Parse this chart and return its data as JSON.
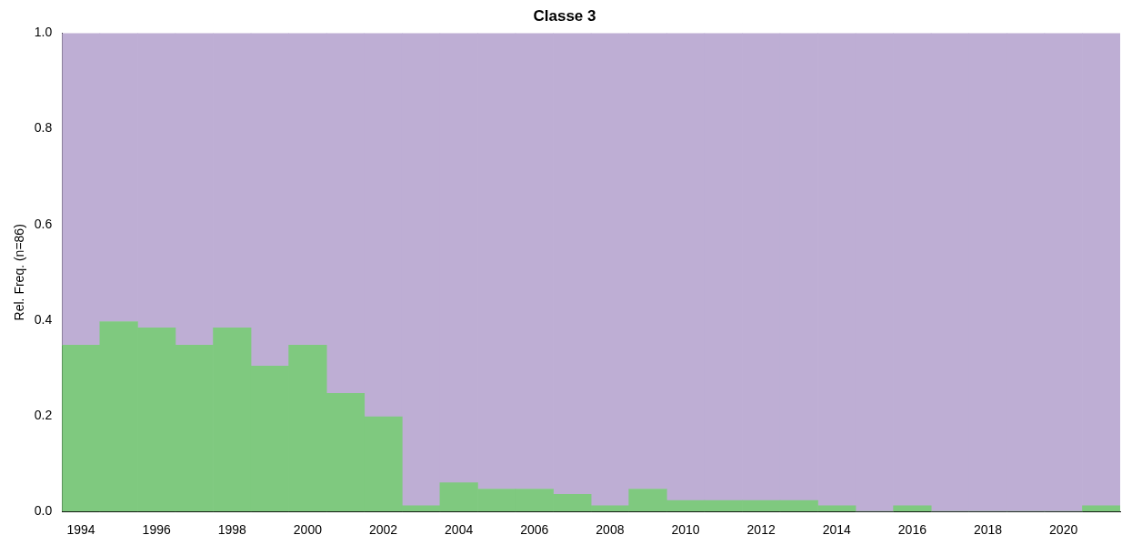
{
  "chart_data": {
    "type": "bar",
    "stacked": true,
    "title": "Classe 3",
    "ylabel": "Rel. Freq. (n=86)",
    "categories": [
      "1994",
      null,
      "1996",
      null,
      "1998",
      null,
      "2000",
      null,
      "2002",
      null,
      "2004",
      null,
      "2006",
      null,
      "2008",
      null,
      "2010",
      null,
      "2012",
      null,
      "2014",
      null,
      "2016",
      null,
      "2018",
      null,
      "2020",
      null
    ],
    "series": [
      {
        "color": "#7fc97f",
        "values": [
          0.348,
          0.397,
          0.384,
          0.348,
          0.384,
          0.304,
          0.348,
          0.247,
          0.198,
          0.012,
          0.06,
          0.047,
          0.047,
          0.036,
          0.012,
          0.047,
          0.023,
          0.023,
          0.023,
          0.023,
          0.012,
          0,
          0.012,
          0,
          0,
          0,
          0,
          0.012
        ]
      },
      {
        "color": "#beaed4",
        "values": [
          0.652,
          0.603,
          0.616,
          0.652,
          0.616,
          0.696,
          0.652,
          0.753,
          0.802,
          0.988,
          0.94,
          0.953,
          0.953,
          0.964,
          0.988,
          0.953,
          0.977,
          0.977,
          0.977,
          0.977,
          0.988,
          1,
          0.988,
          1,
          1,
          1,
          1,
          0.988
        ]
      }
    ],
    "ylim": [
      0,
      1
    ],
    "yticks": [
      {
        "value": 0,
        "label": "0.0"
      },
      {
        "value": 0.2,
        "label": "0.2"
      },
      {
        "value": 0.4,
        "label": "0.4"
      },
      {
        "value": 0.6,
        "label": "0.6"
      },
      {
        "value": 0.8,
        "label": "0.8"
      },
      {
        "value": 1,
        "label": "1.0"
      }
    ],
    "grid": false,
    "legend": false
  }
}
